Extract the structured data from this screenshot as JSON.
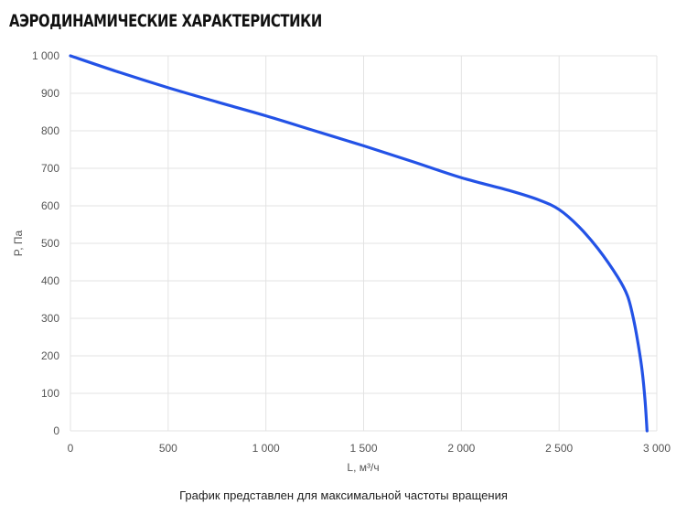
{
  "chart_data": {
    "type": "line",
    "title": "АЭРОДИНАМИЧЕСКИЕ ХАРАКТЕРИСТИКИ",
    "xlabel": "L, м³/ч",
    "ylabel": "P, Па",
    "xlim": [
      0,
      3000
    ],
    "ylim": [
      0,
      1000
    ],
    "x_ticks": [
      0,
      500,
      1000,
      1500,
      2000,
      2500,
      3000
    ],
    "x_tick_labels": [
      "0",
      "500",
      "1 000",
      "1 500",
      "2 000",
      "2 500",
      "3 000"
    ],
    "y_ticks": [
      0,
      100,
      200,
      300,
      400,
      500,
      600,
      700,
      800,
      900,
      1000
    ],
    "y_tick_labels": [
      "0",
      "100",
      "200",
      "300",
      "400",
      "500",
      "600",
      "700",
      "800",
      "900",
      "1 000"
    ],
    "grid": true,
    "series": [
      {
        "color": "#2352e6",
        "points": [
          [
            0,
            1000
          ],
          [
            250,
            956
          ],
          [
            500,
            915
          ],
          [
            750,
            877
          ],
          [
            1000,
            840
          ],
          [
            1250,
            800
          ],
          [
            1500,
            760
          ],
          [
            1750,
            718
          ],
          [
            2000,
            675
          ],
          [
            2250,
            640
          ],
          [
            2400,
            615
          ],
          [
            2500,
            590
          ],
          [
            2600,
            545
          ],
          [
            2700,
            485
          ],
          [
            2800,
            410
          ],
          [
            2850,
            360
          ],
          [
            2880,
            300
          ],
          [
            2905,
            230
          ],
          [
            2925,
            160
          ],
          [
            2940,
            80
          ],
          [
            2950,
            0
          ]
        ]
      }
    ],
    "footnote": "График представлен для максимальной частоты вращения"
  }
}
